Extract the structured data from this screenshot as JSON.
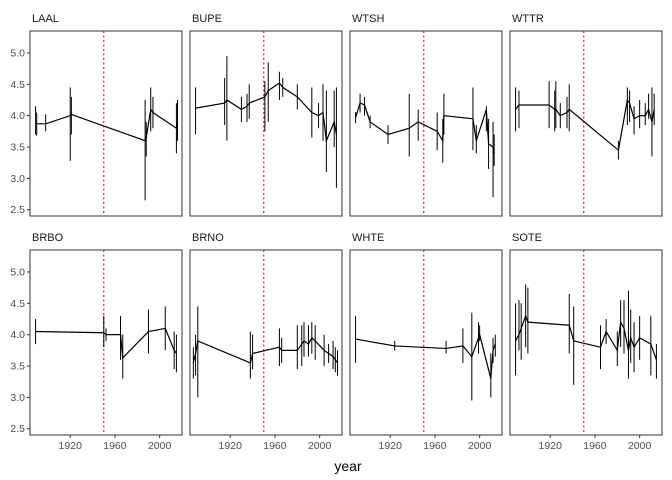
{
  "chart_data": {
    "type": "line",
    "facet_type": "small-multiples",
    "xlabel": "year",
    "ylabel": "",
    "xlim": [
      1884,
      2020
    ],
    "ylim": [
      2.4,
      5.35
    ],
    "x_ticks": [
      1920,
      1960,
      2000
    ],
    "y_ticks": [
      2.5,
      3.0,
      3.5,
      4.0,
      4.5,
      5.0
    ],
    "y_tick_labels": [
      "2.5",
      "3.0",
      "3.5",
      "4.0",
      "4.5",
      "5.0"
    ],
    "reference_line": {
      "x": 1950,
      "style": "dotted",
      "color": "#e41a1c"
    },
    "grid": false,
    "line_color": "#000000",
    "panels": [
      {
        "name": "LAAL",
        "points": [
          [
            1889,
            3.88,
            3.7,
            4.15
          ],
          [
            1890,
            3.87,
            3.68,
            4.05
          ],
          [
            1898,
            3.87,
            3.75,
            4.02
          ],
          [
            1920,
            4.0,
            3.28,
            4.45
          ],
          [
            1921,
            4.02,
            3.7,
            4.3
          ],
          [
            1987,
            3.6,
            2.65,
            4.25
          ],
          [
            1988,
            3.65,
            3.35,
            3.9
          ],
          [
            1992,
            4.1,
            3.75,
            4.45
          ],
          [
            1994,
            4.05,
            3.8,
            4.3
          ],
          [
            2015,
            3.8,
            3.4,
            4.2
          ],
          [
            2016,
            3.9,
            3.6,
            4.25
          ]
        ]
      },
      {
        "name": "BUPE",
        "points": [
          [
            1889,
            4.12,
            3.7,
            4.45
          ],
          [
            1915,
            4.2,
            3.85,
            4.6
          ],
          [
            1917,
            4.25,
            3.6,
            4.95
          ],
          [
            1930,
            4.1,
            3.9,
            4.3
          ],
          [
            1935,
            4.15,
            3.9,
            4.35
          ],
          [
            1937,
            4.2,
            3.95,
            4.5
          ],
          [
            1951,
            4.3,
            3.75,
            4.55
          ],
          [
            1954,
            4.4,
            3.9,
            4.85
          ],
          [
            1964,
            4.52,
            4.25,
            4.7
          ],
          [
            1967,
            4.45,
            4.3,
            4.6
          ],
          [
            1980,
            4.3,
            4.1,
            4.5
          ],
          [
            1993,
            4.05,
            3.65,
            4.45
          ],
          [
            1999,
            4.0,
            3.8,
            4.2
          ],
          [
            2003,
            4.05,
            3.6,
            4.5
          ],
          [
            2006,
            3.6,
            3.1,
            4.4
          ],
          [
            2013,
            3.9,
            3.5,
            4.4
          ],
          [
            2015,
            3.7,
            2.85,
            4.45
          ]
        ]
      },
      {
        "name": "WTSH",
        "points": [
          [
            1889,
            3.97,
            3.88,
            4.06
          ],
          [
            1893,
            4.2,
            4.05,
            4.35
          ],
          [
            1897,
            4.17,
            4.0,
            4.3
          ],
          [
            1902,
            3.9,
            3.8,
            4.0
          ],
          [
            1918,
            3.7,
            3.55,
            3.85
          ],
          [
            1937,
            3.8,
            3.35,
            4.35
          ],
          [
            1945,
            3.9,
            3.6,
            4.1
          ],
          [
            1962,
            3.75,
            3.45,
            4.05
          ],
          [
            1967,
            3.6,
            3.25,
            3.95
          ],
          [
            1968,
            4.0,
            3.7,
            4.35
          ],
          [
            1994,
            3.95,
            3.45,
            4.45
          ],
          [
            1997,
            3.6,
            3.4,
            3.85
          ],
          [
            2006,
            4.1,
            3.75,
            4.15
          ],
          [
            2008,
            3.55,
            3.15,
            3.95
          ],
          [
            2012,
            3.5,
            2.7,
            3.9
          ],
          [
            2013,
            3.4,
            3.2,
            3.7
          ]
        ]
      },
      {
        "name": "WTTR",
        "points": [
          [
            1889,
            4.1,
            3.75,
            4.45
          ],
          [
            1892,
            4.17,
            3.8,
            4.4
          ],
          [
            1919,
            4.17,
            3.8,
            4.55
          ],
          [
            1924,
            4.1,
            3.75,
            4.4
          ],
          [
            1925,
            4.1,
            3.8,
            4.55
          ],
          [
            1929,
            4.0,
            3.8,
            4.2
          ],
          [
            1935,
            4.05,
            3.8,
            4.3
          ],
          [
            1937,
            4.1,
            3.75,
            4.5
          ],
          [
            1981,
            3.45,
            3.3,
            3.6
          ],
          [
            1989,
            4.25,
            3.85,
            4.45
          ],
          [
            1991,
            4.2,
            3.9,
            4.4
          ],
          [
            1995,
            3.95,
            3.7,
            4.15
          ],
          [
            2000,
            4.0,
            3.8,
            4.25
          ],
          [
            2005,
            4.0,
            3.85,
            4.2
          ],
          [
            2008,
            4.1,
            3.95,
            4.35
          ],
          [
            2011,
            3.9,
            3.35,
            4.45
          ],
          [
            2013,
            4.1,
            3.85,
            4.35
          ]
        ]
      },
      {
        "name": "BRBO",
        "points": [
          [
            1889,
            4.05,
            3.85,
            4.25
          ],
          [
            1950,
            4.03,
            3.8,
            4.3
          ],
          [
            1952,
            4.0,
            3.9,
            4.1
          ],
          [
            1965,
            4.0,
            3.6,
            4.3
          ],
          [
            1967,
            3.63,
            3.3,
            4.0
          ],
          [
            1990,
            4.05,
            3.7,
            4.4
          ],
          [
            2005,
            4.1,
            3.75,
            4.45
          ],
          [
            2013,
            3.75,
            3.45,
            4.05
          ],
          [
            2015,
            3.7,
            3.4,
            4.0
          ]
        ]
      },
      {
        "name": "BRNO",
        "points": [
          [
            1887,
            3.55,
            3.3,
            3.8
          ],
          [
            1889,
            3.7,
            3.35,
            4.0
          ],
          [
            1891,
            3.9,
            3.0,
            4.45
          ],
          [
            1938,
            3.55,
            3.3,
            4.05
          ],
          [
            1940,
            3.7,
            3.45,
            4.0
          ],
          [
            1964,
            3.8,
            3.5,
            4.1
          ],
          [
            1966,
            3.75,
            3.55,
            3.95
          ],
          [
            1980,
            3.75,
            3.45,
            4.15
          ],
          [
            1984,
            3.85,
            3.5,
            4.15
          ],
          [
            1986,
            3.9,
            3.65,
            4.2
          ],
          [
            1990,
            3.85,
            3.65,
            4.15
          ],
          [
            1993,
            3.95,
            3.7,
            4.2
          ],
          [
            1996,
            3.9,
            3.6,
            4.15
          ],
          [
            2004,
            3.75,
            3.5,
            4.0
          ],
          [
            2008,
            3.7,
            3.55,
            3.85
          ],
          [
            2012,
            3.65,
            3.45,
            3.9
          ],
          [
            2014,
            3.6,
            3.4,
            3.8
          ],
          [
            2016,
            3.55,
            3.35,
            3.75
          ]
        ]
      },
      {
        "name": "WHTE",
        "points": [
          [
            1889,
            3.93,
            3.55,
            4.3
          ],
          [
            1924,
            3.82,
            3.75,
            3.9
          ],
          [
            1970,
            3.78,
            3.7,
            3.9
          ],
          [
            1985,
            3.82,
            3.55,
            4.1
          ],
          [
            1993,
            3.65,
            2.95,
            4.35
          ],
          [
            1999,
            3.95,
            3.7,
            4.2
          ],
          [
            2000,
            4.0,
            3.9,
            4.15
          ],
          [
            2010,
            3.3,
            3.0,
            3.7
          ],
          [
            2012,
            3.75,
            3.55,
            3.95
          ],
          [
            2014,
            3.85,
            3.65,
            4.0
          ]
        ]
      },
      {
        "name": "SOTE",
        "points": [
          [
            1889,
            3.9,
            3.35,
            4.5
          ],
          [
            1892,
            4.0,
            3.75,
            4.55
          ],
          [
            1894,
            4.1,
            3.6,
            4.5
          ],
          [
            1898,
            4.3,
            3.8,
            4.8
          ],
          [
            1900,
            4.2,
            3.7,
            4.75
          ],
          [
            1937,
            4.15,
            3.7,
            4.65
          ],
          [
            1941,
            3.9,
            3.2,
            4.45
          ],
          [
            1965,
            3.8,
            3.45,
            4.15
          ],
          [
            1970,
            4.05,
            3.85,
            4.25
          ],
          [
            1980,
            3.75,
            3.5,
            4.05
          ],
          [
            1983,
            4.2,
            3.8,
            4.55
          ],
          [
            1986,
            4.1,
            3.7,
            4.55
          ],
          [
            1990,
            3.75,
            3.3,
            4.7
          ],
          [
            1992,
            3.95,
            3.55,
            4.4
          ],
          [
            1995,
            3.8,
            3.4,
            4.2
          ],
          [
            2000,
            3.95,
            3.6,
            4.3
          ],
          [
            2010,
            3.85,
            3.35,
            4.3
          ],
          [
            2015,
            3.6,
            3.3,
            3.85
          ]
        ]
      }
    ]
  }
}
